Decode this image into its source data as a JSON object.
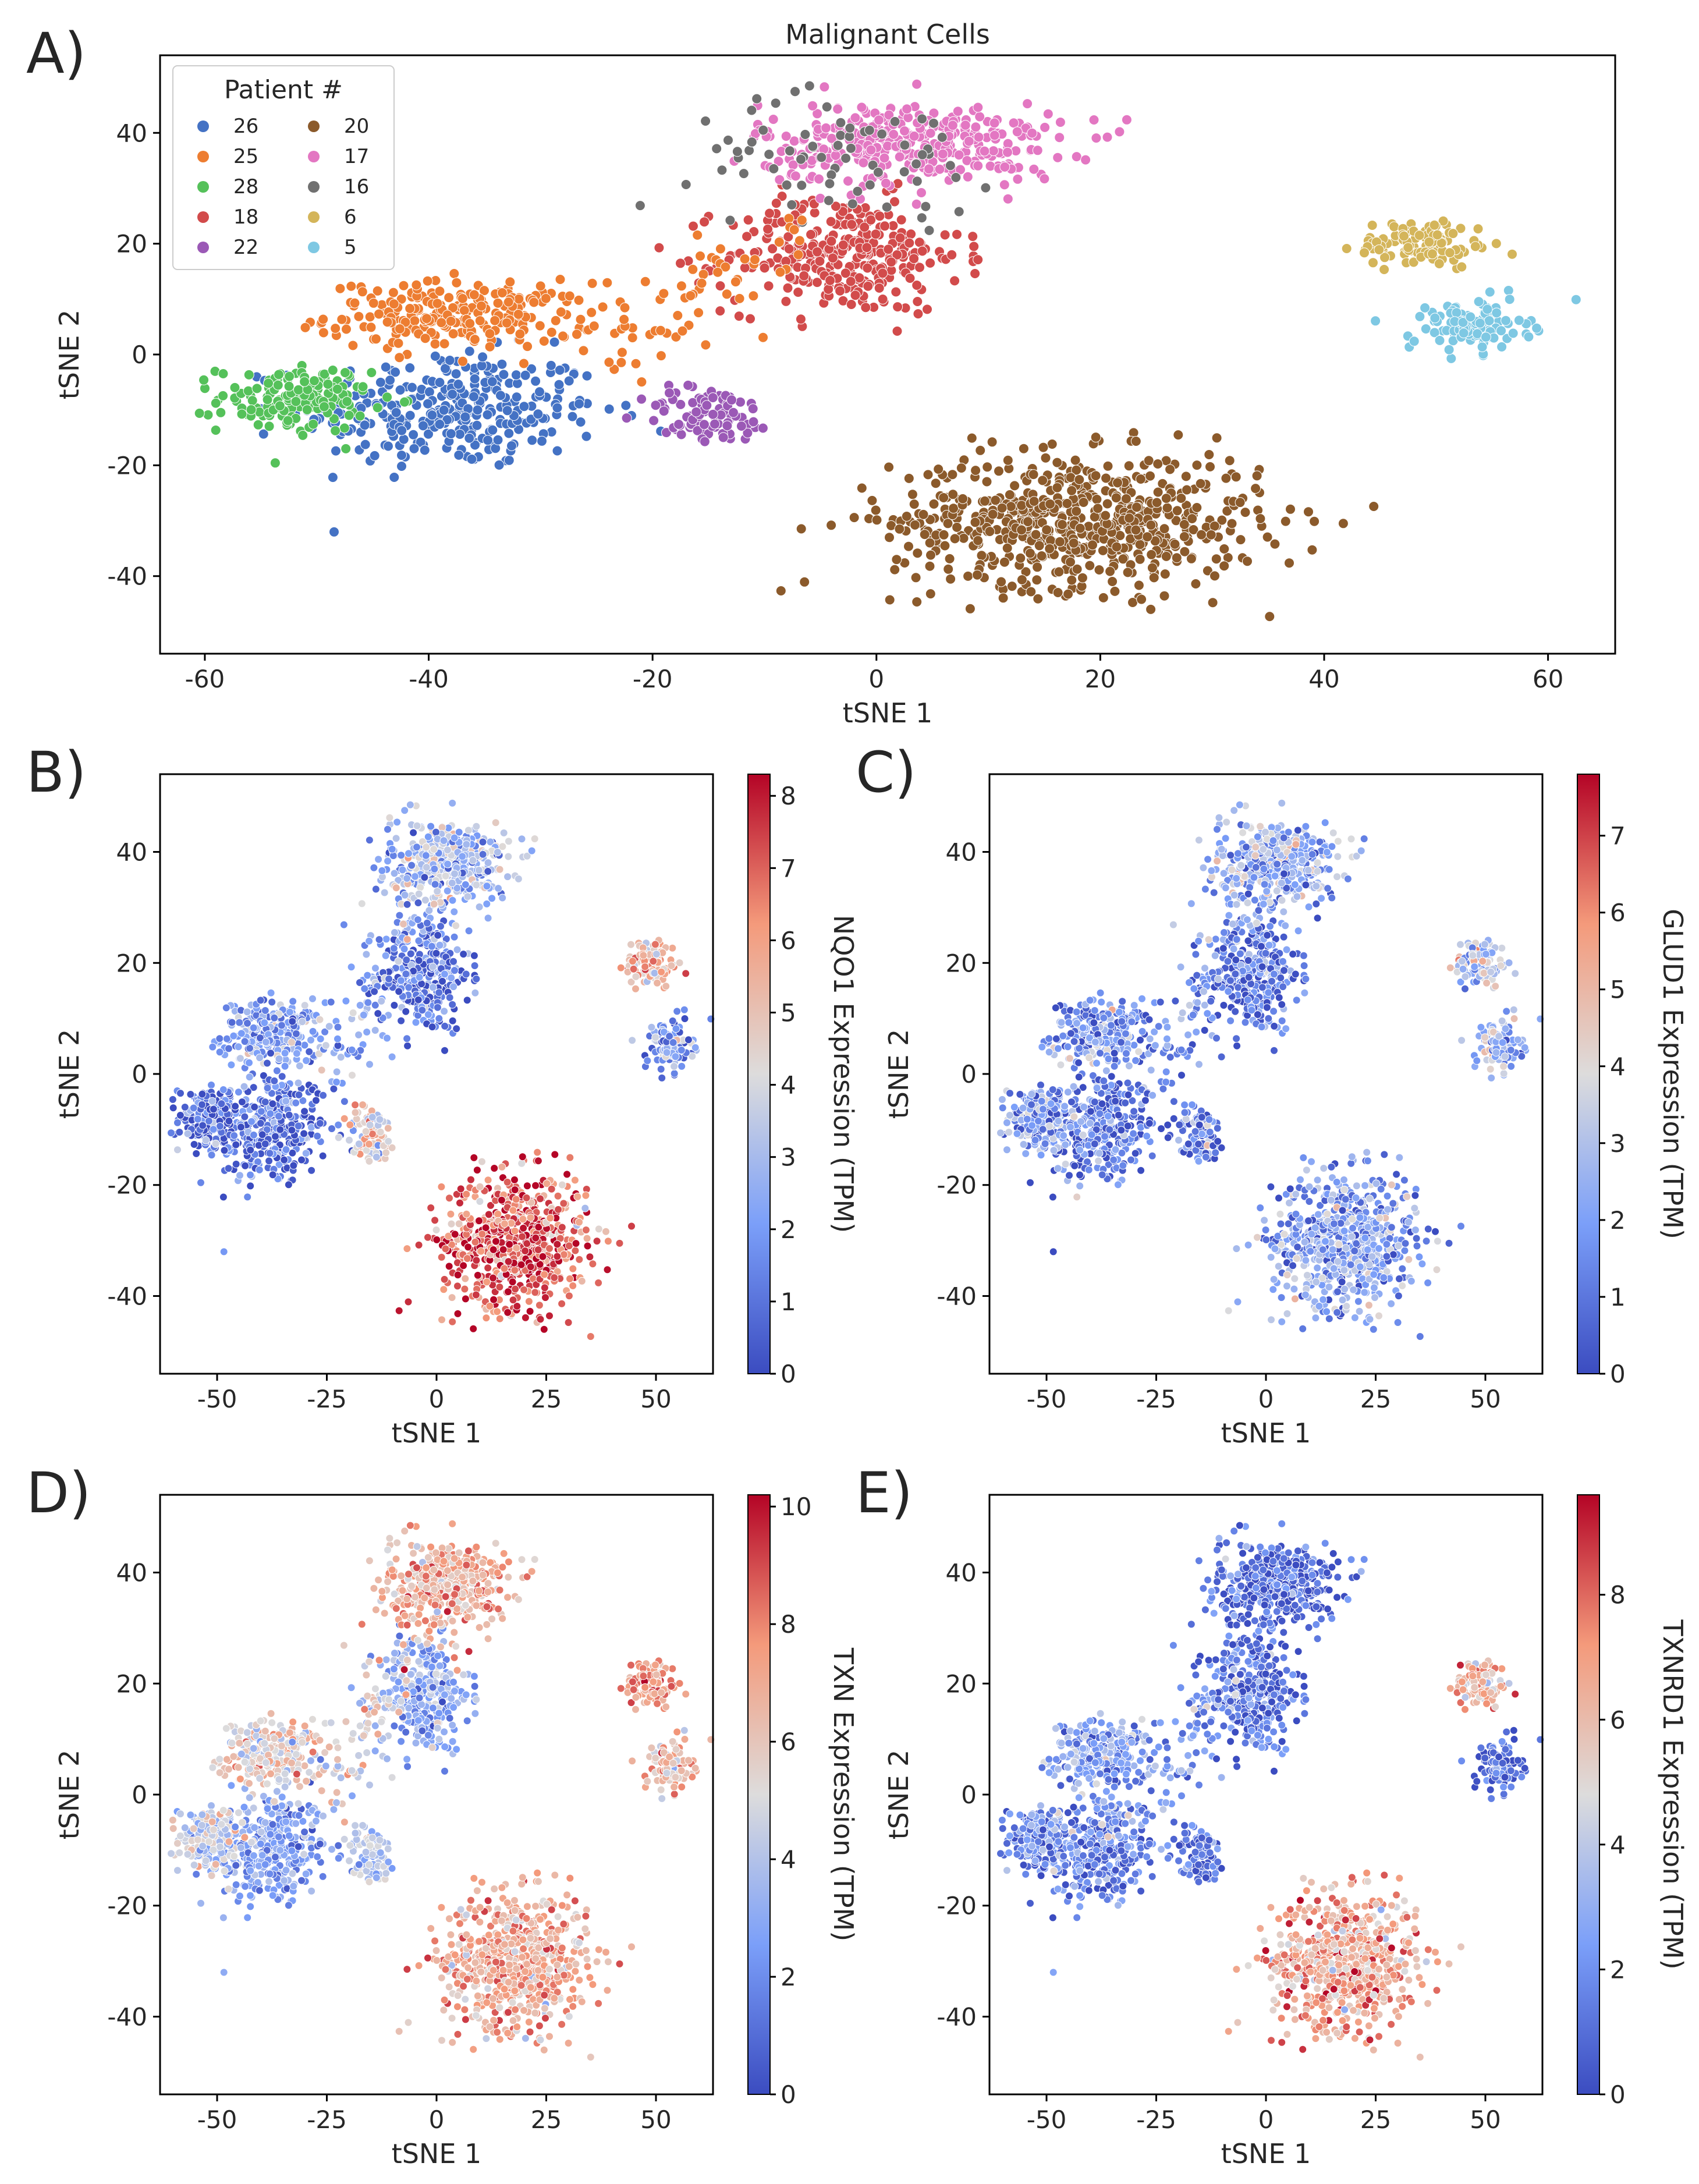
{
  "chart_data": [
    {
      "panel": "A)",
      "type": "scatter",
      "title": "Malignant Cells",
      "xlabel": "tSNE 1",
      "ylabel": "tSNE 2",
      "xlim": [
        -64,
        66
      ],
      "ylim": [
        -54,
        54
      ],
      "xticks": [
        -60,
        -40,
        -20,
        0,
        20,
        40,
        60
      ],
      "yticks": [
        -40,
        -20,
        0,
        20,
        40
      ],
      "legend": {
        "title": "Patient #",
        "position": "top-left",
        "entries": [
          {
            "label": "26",
            "color": "#4472c4"
          },
          {
            "label": "25",
            "color": "#ed7d31"
          },
          {
            "label": "28",
            "color": "#55c15a"
          },
          {
            "label": "18",
            "color": "#d24b4b"
          },
          {
            "label": "22",
            "color": "#9b59b6"
          },
          {
            "label": "20",
            "color": "#8b5a2b"
          },
          {
            "label": "17",
            "color": "#e377c2"
          },
          {
            "label": "16",
            "color": "#707070"
          },
          {
            "label": "6",
            "color": "#d4b55a"
          },
          {
            "label": "5",
            "color": "#7ec8e3"
          }
        ]
      },
      "clusters": [
        {
          "patient": "26",
          "color": "#4472c4",
          "center": [
            -38,
            -10
          ],
          "spread": [
            9,
            7
          ],
          "n": 320
        },
        {
          "patient": "25",
          "color": "#ed7d31",
          "center": [
            -37,
            7
          ],
          "spread": [
            8,
            4
          ],
          "n": 240
        },
        {
          "patient": "28",
          "color": "#55c15a",
          "center": [
            -52,
            -8
          ],
          "spread": [
            4.5,
            4
          ],
          "n": 150
        },
        {
          "patient": "18",
          "color": "#d24b4b",
          "center": [
            -3,
            18
          ],
          "spread": [
            7,
            7
          ],
          "n": 300
        },
        {
          "patient": "22",
          "color": "#9b59b6",
          "center": [
            -15,
            -11
          ],
          "spread": [
            4,
            3.5
          ],
          "n": 90
        },
        {
          "patient": "20",
          "color": "#8b5a2b",
          "center": [
            18,
            -30
          ],
          "spread": [
            11,
            8
          ],
          "n": 650
        },
        {
          "patient": "17",
          "color": "#e377c2",
          "center": [
            3,
            38
          ],
          "spread": [
            9,
            5
          ],
          "n": 360
        },
        {
          "patient": "16",
          "color": "#707070",
          "center": [
            -3,
            36
          ],
          "spread": [
            9,
            7
          ],
          "n": 70
        },
        {
          "patient": "6",
          "color": "#d4b55a",
          "center": [
            49,
            20
          ],
          "spread": [
            4,
            3
          ],
          "n": 110
        },
        {
          "patient": "5",
          "color": "#7ec8e3",
          "center": [
            53,
            5
          ],
          "spread": [
            3.5,
            3
          ],
          "n": 110
        }
      ]
    },
    {
      "panel": "B)",
      "type": "scatter",
      "xlabel": "tSNE 1",
      "ylabel": "tSNE 2",
      "xlim": [
        -63,
        63
      ],
      "ylim": [
        -54,
        54
      ],
      "xticks": [
        -50,
        -25,
        0,
        25,
        50
      ],
      "yticks": [
        -40,
        -20,
        0,
        20,
        40
      ],
      "colorbar": {
        "label": "NQO1 Expression (TPM)",
        "min": 0,
        "max": 8.3,
        "ticks": [
          0,
          1,
          2,
          3,
          4,
          5,
          6,
          7,
          8
        ]
      }
    },
    {
      "panel": "C)",
      "type": "scatter",
      "xlabel": "tSNE 1",
      "ylabel": "tSNE 2",
      "xlim": [
        -63,
        63
      ],
      "ylim": [
        -54,
        54
      ],
      "xticks": [
        -50,
        -25,
        0,
        25,
        50
      ],
      "yticks": [
        -40,
        -20,
        0,
        20,
        40
      ],
      "colorbar": {
        "label": "GLUD1 Expression (TPM)",
        "min": 0,
        "max": 7.8,
        "ticks": [
          0,
          1,
          2,
          3,
          4,
          5,
          6,
          7
        ]
      }
    },
    {
      "panel": "D)",
      "type": "scatter",
      "xlabel": "tSNE 1",
      "ylabel": "tSNE 2",
      "xlim": [
        -63,
        63
      ],
      "ylim": [
        -54,
        54
      ],
      "xticks": [
        -50,
        -25,
        0,
        25,
        50
      ],
      "yticks": [
        -40,
        -20,
        0,
        20,
        40
      ],
      "colorbar": {
        "label": "TXN Expression (TPM)",
        "min": 0,
        "max": 10.2,
        "ticks": [
          0,
          2,
          4,
          6,
          8,
          10
        ]
      }
    },
    {
      "panel": "E)",
      "type": "scatter",
      "xlabel": "tSNE 1",
      "ylabel": "tSNE 2",
      "xlim": [
        -63,
        63
      ],
      "ylim": [
        -54,
        54
      ],
      "xticks": [
        -50,
        -25,
        0,
        25,
        50
      ],
      "yticks": [
        -40,
        -20,
        0,
        20,
        40
      ],
      "colorbar": {
        "label": "TXNRD1 Expression (TPM)",
        "min": 0,
        "max": 9.6,
        "ticks": [
          0,
          2,
          4,
          6,
          8
        ]
      }
    }
  ],
  "expression_levels": {
    "NQO1": {
      "26": 0.8,
      "25": 2.0,
      "28": 0.6,
      "18": 1.0,
      "22": 4.5,
      "20": 7.2,
      "17": 3.0,
      "16": 2.5,
      "6": 5.5,
      "5": 2.0
    },
    "GLUD1": {
      "26": 1.0,
      "25": 1.5,
      "28": 2.0,
      "18": 1.0,
      "22": 1.2,
      "20": 2.0,
      "17": 2.2,
      "16": 2.5,
      "6": 3.5,
      "5": 2.5
    },
    "TXN": {
      "26": 2.5,
      "25": 5.5,
      "28": 4.5,
      "18": 3.0,
      "22": 4.0,
      "20": 7.0,
      "17": 7.0,
      "16": 7.0,
      "6": 7.5,
      "5": 6.5
    },
    "TXNRD1": {
      "26": 1.5,
      "25": 2.5,
      "28": 1.8,
      "18": 1.0,
      "22": 1.0,
      "20": 6.8,
      "17": 0.8,
      "16": 1.0,
      "6": 6.5,
      "5": 1.0
    }
  }
}
